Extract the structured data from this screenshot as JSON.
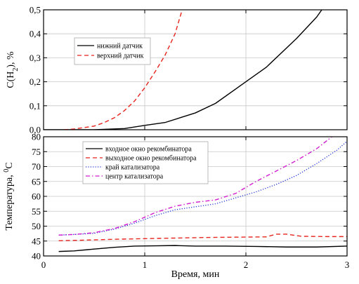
{
  "chart_data": [
    {
      "type": "line",
      "title": "",
      "xlabel": "",
      "ylabel": "C(H2), %",
      "ylabel_parts": {
        "pre": "C(H",
        "sub": "2",
        "post": "), %"
      },
      "xlim": [
        0,
        3
      ],
      "ylim": [
        0,
        0.5
      ],
      "xticks": [
        0,
        1,
        2,
        3
      ],
      "yticks": [
        0.0,
        0.1,
        0.2,
        0.3,
        0.4,
        0.5
      ],
      "ytick_labels": [
        "0,0",
        "0,1",
        "0,2",
        "0,3",
        "0,4",
        "0,5"
      ],
      "grid": true,
      "legend_position": "top-left",
      "series": [
        {
          "name": "нижний датчик",
          "color": "#000000",
          "dash": "solid",
          "x": [
            0.0,
            0.2,
            0.5,
            0.8,
            1.0,
            1.2,
            1.5,
            1.7,
            2.0,
            2.2,
            2.5,
            2.7,
            2.75
          ],
          "y": [
            0.0,
            0.0,
            0.0,
            0.005,
            0.018,
            0.03,
            0.07,
            0.11,
            0.2,
            0.26,
            0.38,
            0.47,
            0.5
          ]
        },
        {
          "name": "верхний датчик",
          "color": "#e8251e",
          "dash": "dashed",
          "x": [
            0.2,
            0.3,
            0.5,
            0.6,
            0.7,
            0.8,
            0.9,
            1.0,
            1.1,
            1.2,
            1.3,
            1.37
          ],
          "y": [
            0.0,
            0.003,
            0.015,
            0.03,
            0.05,
            0.08,
            0.12,
            0.175,
            0.24,
            0.31,
            0.4,
            0.5
          ]
        }
      ]
    },
    {
      "type": "line",
      "title": "",
      "xlabel": "Время, мин",
      "ylabel": "Температура, 0С",
      "ylabel_parts": {
        "pre": "Температура, ",
        "sup": "0",
        "post": "С"
      },
      "xlim": [
        0,
        3
      ],
      "ylim": [
        40,
        80
      ],
      "xticks": [
        0,
        1,
        2,
        3
      ],
      "xtick_labels": [
        "0",
        "1",
        "2",
        "3"
      ],
      "yticks": [
        40,
        45,
        50,
        55,
        60,
        65,
        70,
        75,
        80
      ],
      "ytick_labels": [
        "40",
        "45",
        "50",
        "55",
        "60",
        "65",
        "70",
        "75",
        "80"
      ],
      "grid": true,
      "legend_position": "top-left",
      "series": [
        {
          "name": "входное окно рекомбинатора",
          "color": "#000000",
          "dash": "solid",
          "x": [
            0.15,
            0.3,
            0.5,
            0.7,
            0.9,
            1.1,
            1.3,
            1.5,
            1.8,
            2.1,
            2.4,
            2.7,
            3.0
          ],
          "y": [
            41.5,
            41.7,
            42.3,
            42.9,
            43.3,
            43.4,
            43.5,
            43.3,
            43.3,
            43.2,
            43.0,
            43.0,
            43.3
          ]
        },
        {
          "name": "выходное окно рекомбинатора",
          "color": "#e8251e",
          "dash": "dashed",
          "x": [
            0.15,
            0.4,
            0.7,
            1.0,
            1.3,
            1.6,
            1.9,
            2.2,
            2.3,
            2.4,
            2.55,
            2.8,
            3.0
          ],
          "y": [
            45.1,
            45.3,
            45.6,
            45.8,
            46.0,
            46.2,
            46.3,
            46.4,
            47.3,
            47.3,
            46.6,
            46.5,
            46.5
          ]
        },
        {
          "name": "край катализатора",
          "color": "#1f33d6",
          "dash": "dotted",
          "x": [
            0.15,
            0.3,
            0.5,
            0.7,
            0.9,
            1.1,
            1.3,
            1.5,
            1.7,
            1.9,
            2.1,
            2.3,
            2.5,
            2.7,
            2.9,
            3.0
          ],
          "y": [
            47.0,
            47.2,
            47.6,
            49.0,
            51.0,
            53.5,
            55.5,
            56.5,
            57.5,
            59.5,
            61.5,
            64.0,
            67.0,
            71.0,
            75.5,
            78.5
          ]
        },
        {
          "name": "центр катализатора",
          "color": "#d21ecf",
          "dash": "dashdot",
          "x": [
            0.15,
            0.3,
            0.5,
            0.7,
            0.9,
            1.1,
            1.3,
            1.5,
            1.7,
            1.9,
            2.1,
            2.3,
            2.5,
            2.7,
            2.85
          ],
          "y": [
            47.0,
            47.2,
            47.8,
            49.2,
            51.5,
            54.5,
            56.7,
            58.0,
            58.8,
            61.0,
            65.0,
            68.5,
            72.0,
            76.0,
            80.0
          ]
        }
      ]
    }
  ]
}
